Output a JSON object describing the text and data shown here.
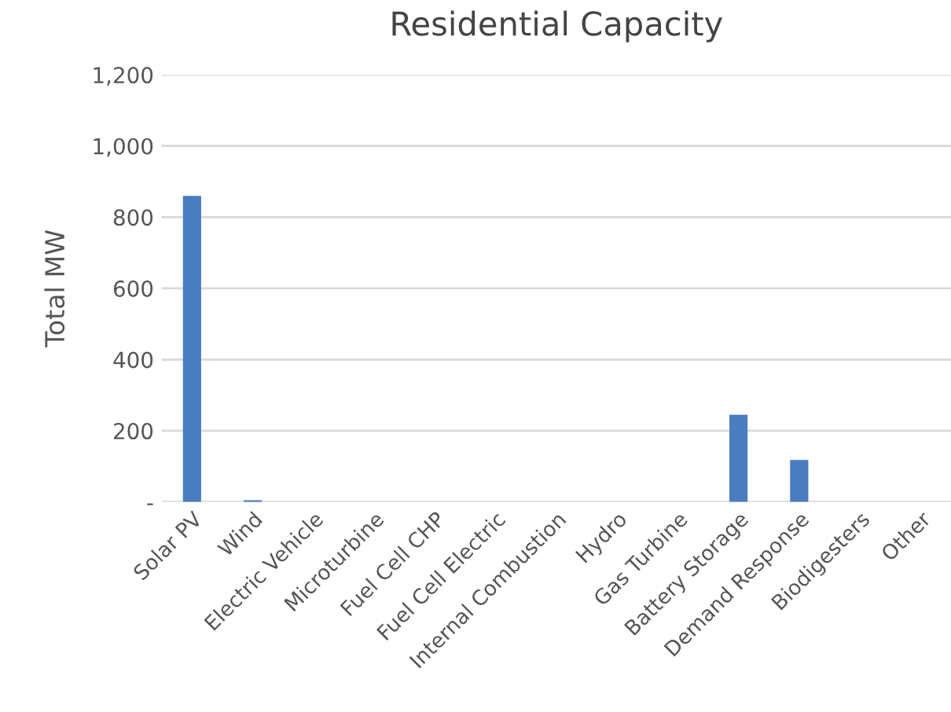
{
  "chart_data": {
    "type": "bar",
    "title": "Residential Capacity",
    "ylabel": "Total MW",
    "categories": [
      "Solar PV",
      "Wind",
      "Electric Vehicle",
      "Microturbine",
      "Fuel Cell CHP",
      "Fuel Cell Electric",
      "Internal Combustion",
      "Hydro",
      "Gas Turbine",
      "Battery Storage",
      "Demand Response",
      "Biodigesters",
      "Other"
    ],
    "values": [
      860,
      5,
      0,
      0,
      0,
      0,
      0,
      0,
      0,
      245,
      118,
      0,
      0
    ],
    "color": "#4a7dbf",
    "ylim": [
      0,
      1200
    ],
    "yticks": [
      {
        "value": 0,
        "label": "-"
      },
      {
        "value": 200,
        "label": "200"
      },
      {
        "value": 400,
        "label": "400"
      },
      {
        "value": 600,
        "label": "600"
      },
      {
        "value": 800,
        "label": "800"
      },
      {
        "value": 1000,
        "label": "1,000"
      },
      {
        "value": 1200,
        "label": "1,200"
      }
    ],
    "grid": "y",
    "legend": false
  }
}
